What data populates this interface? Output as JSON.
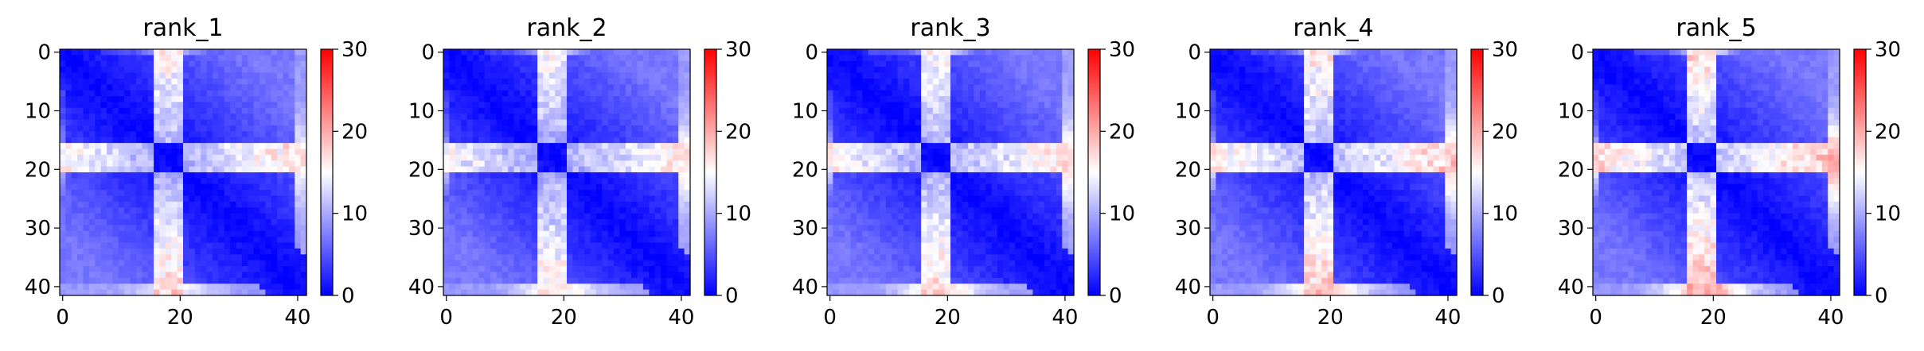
{
  "chart_data": [
    {
      "type": "heatmap",
      "title": "rank_1",
      "x_ticks": [
        0,
        20,
        40
      ],
      "y_ticks": [
        0,
        10,
        20,
        30,
        40
      ],
      "colorbar": {
        "ticks": [
          0,
          10,
          20,
          30
        ],
        "range": [
          0,
          30
        ],
        "colormap": "bwr"
      },
      "matrix_size": 42,
      "band_rows": [
        16,
        20
      ],
      "band_peak": 20,
      "edge_peak": 15
    },
    {
      "type": "heatmap",
      "title": "rank_2",
      "x_ticks": [
        0,
        20,
        40
      ],
      "y_ticks": [
        0,
        10,
        20,
        30,
        40
      ],
      "colorbar": {
        "ticks": [
          0,
          10,
          20,
          30
        ],
        "range": [
          0,
          30
        ],
        "colormap": "bwr"
      },
      "matrix_size": 42,
      "band_rows": [
        16,
        20
      ],
      "band_peak": 19,
      "edge_peak": 17
    },
    {
      "type": "heatmap",
      "title": "rank_3",
      "x_ticks": [
        0,
        20,
        40
      ],
      "y_ticks": [
        0,
        10,
        20,
        30,
        40
      ],
      "colorbar": {
        "ticks": [
          0,
          10,
          20,
          30
        ],
        "range": [
          0,
          30
        ],
        "colormap": "bwr"
      },
      "matrix_size": 42,
      "band_rows": [
        16,
        20
      ],
      "band_peak": 20,
      "edge_peak": 18
    },
    {
      "type": "heatmap",
      "title": "rank_4",
      "x_ticks": [
        0,
        20,
        40
      ],
      "y_ticks": [
        0,
        10,
        20,
        30,
        40
      ],
      "colorbar": {
        "ticks": [
          0,
          10,
          20,
          30
        ],
        "range": [
          0,
          30
        ],
        "colormap": "bwr"
      },
      "matrix_size": 42,
      "band_rows": [
        16,
        20
      ],
      "band_peak": 21,
      "edge_peak": 19
    },
    {
      "type": "heatmap",
      "title": "rank_5",
      "x_ticks": [
        0,
        20,
        40
      ],
      "y_ticks": [
        0,
        10,
        20,
        30,
        40
      ],
      "colorbar": {
        "ticks": [
          0,
          10,
          20,
          30
        ],
        "range": [
          0,
          30
        ],
        "colormap": "bwr"
      },
      "matrix_size": 42,
      "band_rows": [
        16,
        20
      ],
      "band_peak": 22,
      "edge_peak": 21
    }
  ]
}
